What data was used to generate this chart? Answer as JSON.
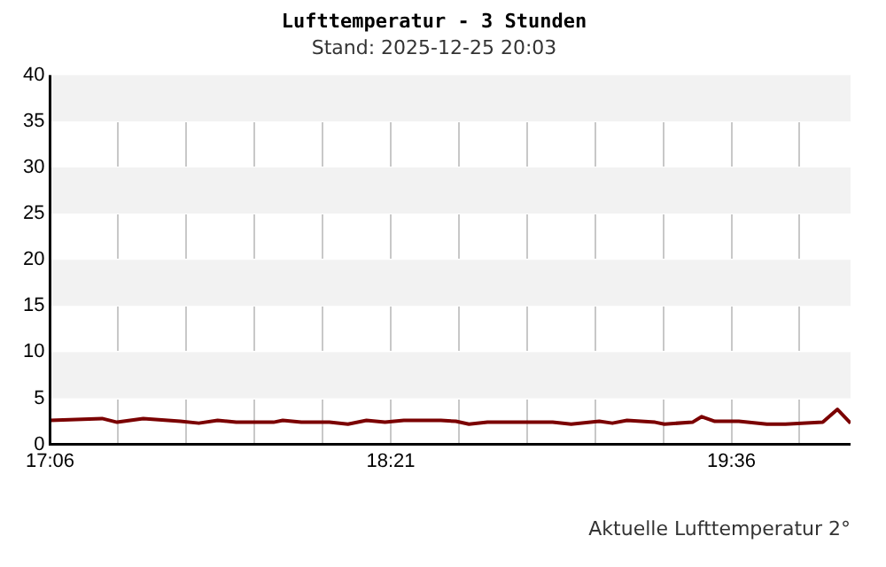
{
  "chart_data": {
    "type": "line",
    "title": "Lufttemperatur - 3 Stunden",
    "subtitle": "Stand: 2025-12-25 20:03",
    "annotations": [
      "Aktuelle Lufttemperatur 2°"
    ],
    "series": [
      {
        "color": "#7b0000",
        "x": [
          17.1,
          17.291,
          17.346,
          17.442,
          17.578,
          17.646,
          17.715,
          17.783,
          17.92,
          17.954,
          18.022,
          18.125,
          18.193,
          18.261,
          18.329,
          18.398,
          18.534,
          18.589,
          18.637,
          18.705,
          18.876,
          18.944,
          19.012,
          19.115,
          19.163,
          19.217,
          19.32,
          19.354,
          19.457,
          19.491,
          19.539,
          19.627,
          19.73,
          19.798,
          19.935,
          19.989,
          20.037
        ],
        "values": [
          2.6,
          2.8,
          2.4,
          2.8,
          2.5,
          2.3,
          2.6,
          2.4,
          2.4,
          2.6,
          2.4,
          2.4,
          2.2,
          2.6,
          2.4,
          2.6,
          2.6,
          2.5,
          2.2,
          2.4,
          2.4,
          2.4,
          2.2,
          2.5,
          2.3,
          2.6,
          2.4,
          2.2,
          2.4,
          3.0,
          2.5,
          2.5,
          2.2,
          2.2,
          2.4,
          3.8,
          2.3
        ]
      }
    ],
    "xlim": [
      17.1,
      20.037
    ],
    "xticks": [
      {
        "value": 17.1,
        "label": "17:06"
      },
      {
        "value": 17.35,
        "label": null
      },
      {
        "value": 17.6,
        "label": null
      },
      {
        "value": 17.85,
        "label": null
      },
      {
        "value": 18.1,
        "label": null
      },
      {
        "value": 18.35,
        "label": "18:21"
      },
      {
        "value": 18.6,
        "label": null
      },
      {
        "value": 18.85,
        "label": null
      },
      {
        "value": 19.1,
        "label": null
      },
      {
        "value": 19.35,
        "label": null
      },
      {
        "value": 19.6,
        "label": "19:36"
      },
      {
        "value": 19.85,
        "label": null
      }
    ],
    "ylim": [
      0,
      40
    ],
    "yticks": [
      0,
      5,
      10,
      15,
      20,
      25,
      30,
      35,
      40
    ],
    "grid": true,
    "legend": false,
    "marker": "none",
    "line_style": "solid"
  }
}
